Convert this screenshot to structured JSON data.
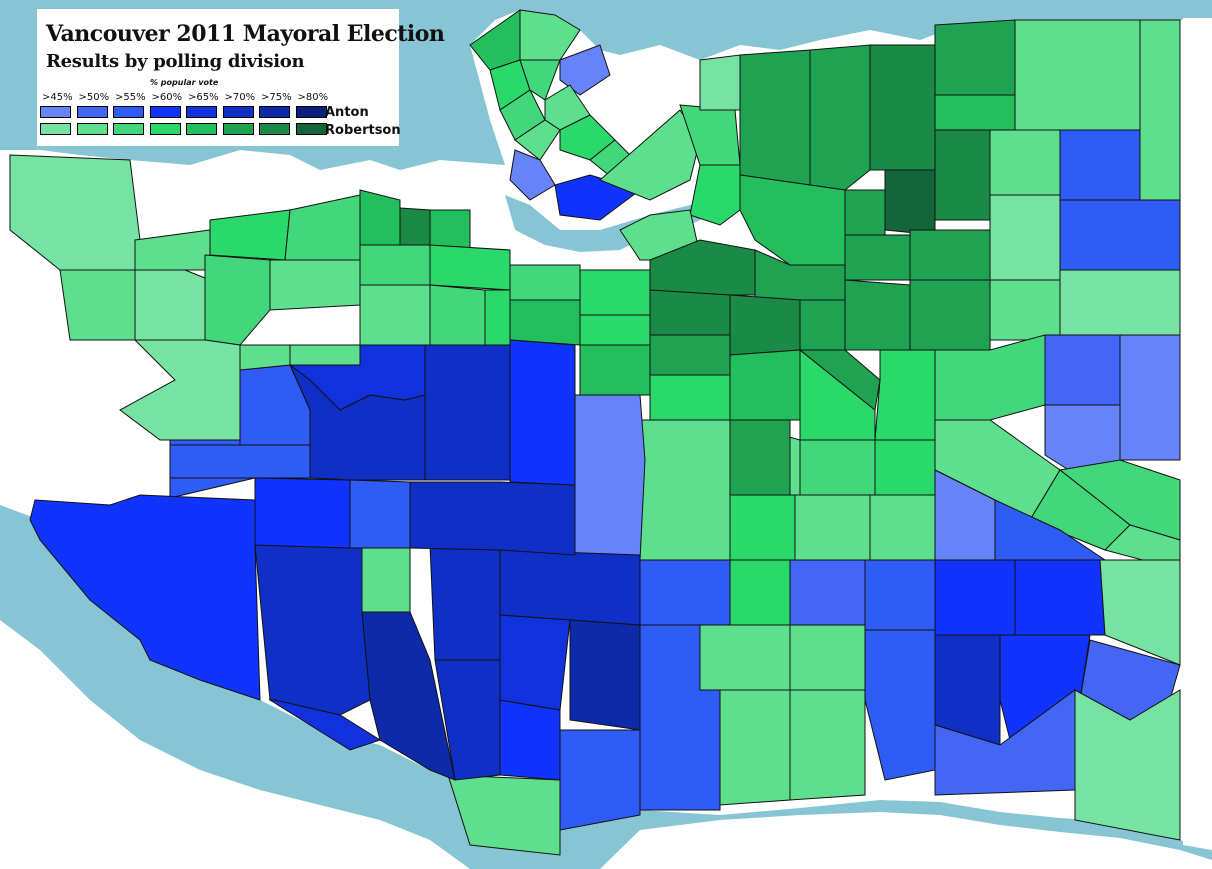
{
  "legend": {
    "title": "Vancouver 2011 Mayoral Election",
    "subtitle": "Results by polling division",
    "caption": "% popular vote",
    "bins": [
      ">45%",
      ">50%",
      ">55%",
      ">60%",
      ">65%",
      ">70%",
      ">75%",
      ">80%"
    ],
    "candidates": [
      {
        "name": "Anton",
        "colors": [
          "#6683f8",
          "#4466f5",
          "#2e5cf5",
          "#1034fb",
          "#1131dd",
          "#0f2fc5",
          "#0d2aa8",
          "#0a1e7e"
        ]
      },
      {
        "name": "Robertson",
        "colors": [
          "#76e3a2",
          "#5edf8d",
          "#42d77a",
          "#2bd86a",
          "#23bf5d",
          "#1fa352",
          "#1b8a46",
          "#14663a"
        ]
      }
    ]
  },
  "colors": {
    "water": "#88c5d4",
    "border": "#111111",
    "land_outside": "#ffffff"
  }
}
